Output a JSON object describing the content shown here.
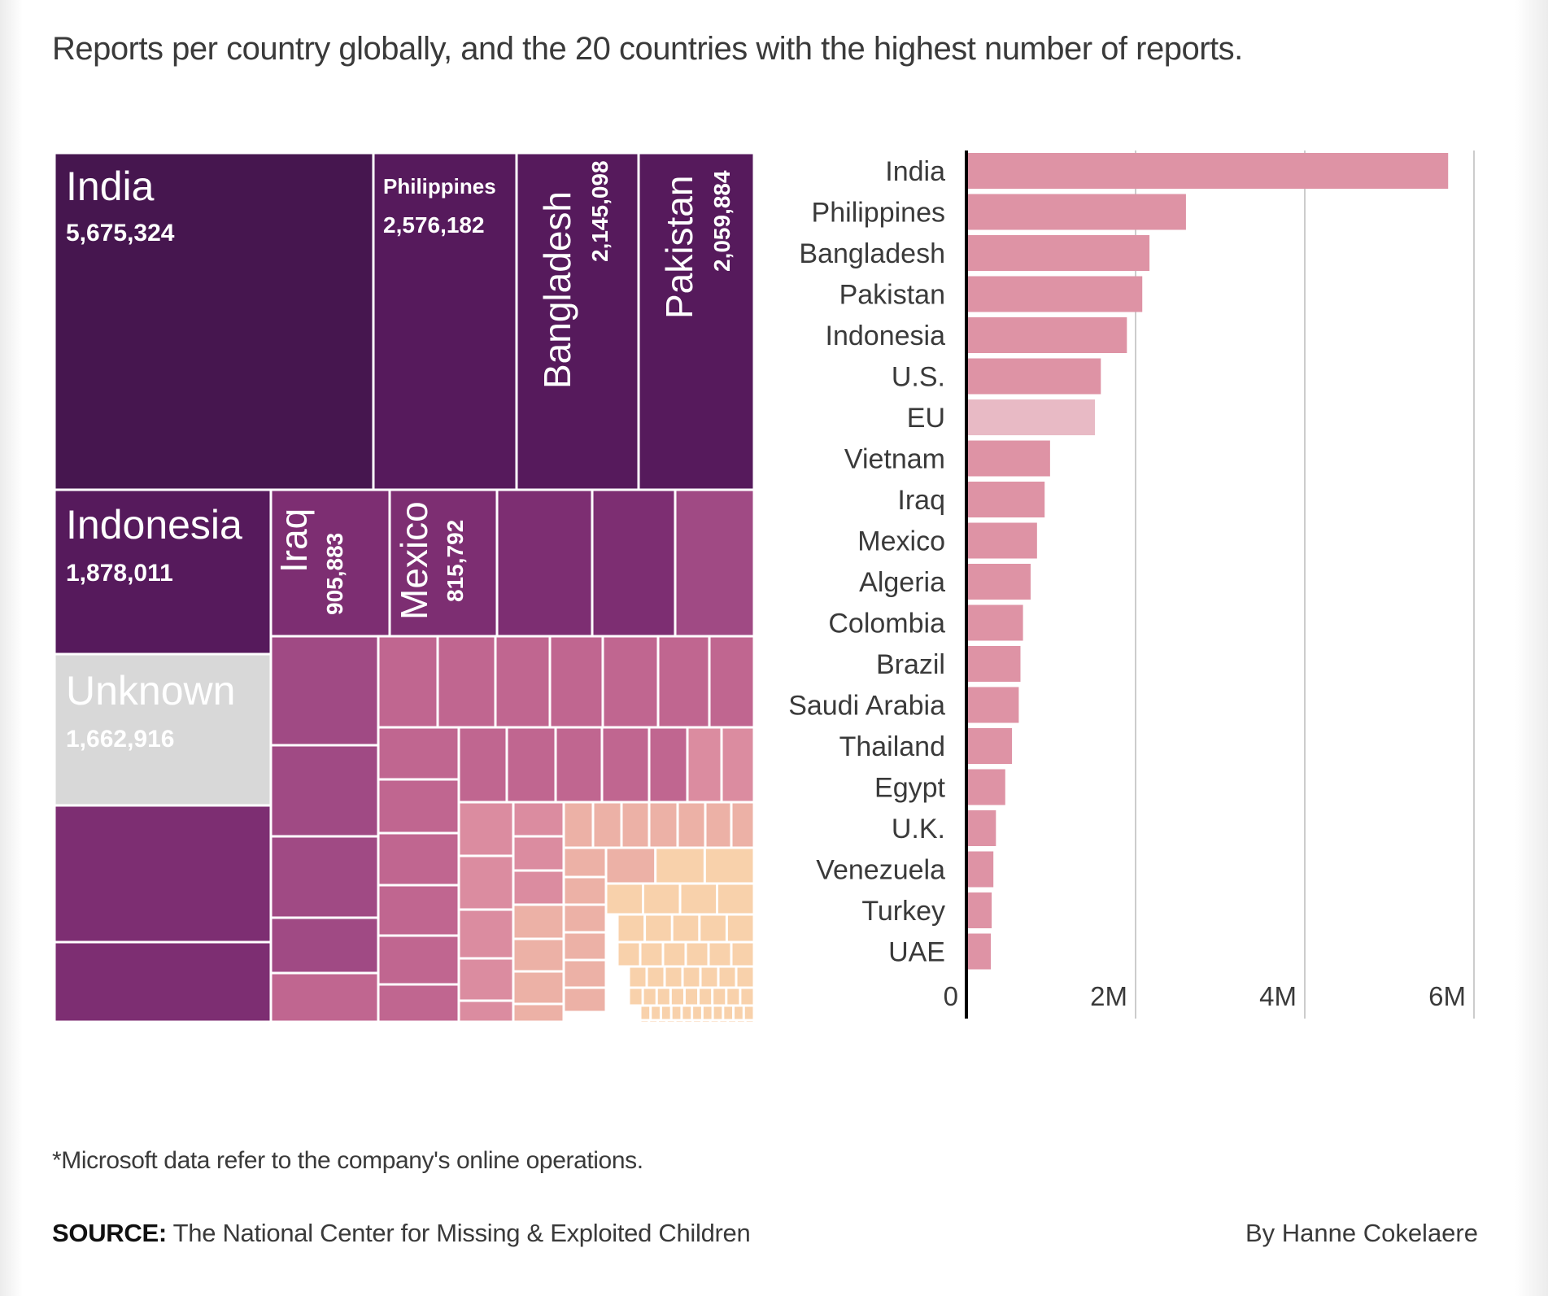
{
  "subtitle": "Reports per country globally, and the 20 countries with the highest number of reports.",
  "footnote": "*Microsoft data refer to the company's online operations.",
  "source_label": "SOURCE:",
  "source_text": "The National Center for Missing & Exploited Children",
  "byline": "By Hanne Cokelaere",
  "colors": {
    "tier1": "#46164f",
    "tier2": "#561a5c",
    "tier3": "#7d2e72",
    "tier4": "#a04a84",
    "tier5": "#c06690",
    "tier6": "#db8ca0",
    "tier7": "#ecb1a6",
    "tier8": "#f8d1ab",
    "unknown": "#d8d8d8",
    "bar": "#de93a5",
    "bar_eu": "#e8bac5",
    "axis": "#000000",
    "grid": "#cccccc"
  },
  "chart_data": [
    {
      "type": "treemap",
      "title": "Reports per country globally",
      "labeled_cells": [
        {
          "name": "India",
          "value": 5675324,
          "display": "5,675,324"
        },
        {
          "name": "Philippines",
          "value": 2576182,
          "display": "2,576,182"
        },
        {
          "name": "Bangladesh",
          "value": 2145098,
          "display": "2,145,098"
        },
        {
          "name": "Pakistan",
          "value": 2059884,
          "display": "2,059,884"
        },
        {
          "name": "Indonesia",
          "value": 1878011,
          "display": "1,878,011"
        },
        {
          "name": "Iraq",
          "value": 905883,
          "display": "905,883"
        },
        {
          "name": "Mexico",
          "value": 815792,
          "display": "815,792"
        },
        {
          "name": "Unknown",
          "value": 1662916,
          "display": "1,662,916"
        }
      ],
      "unlabeled_cells_note": "Remaining countries shown as unlabeled cells shading from purple to peach by size"
    },
    {
      "type": "bar",
      "orientation": "horizontal",
      "title": "20 countries with the highest number of reports",
      "categories": [
        "India",
        "Philippines",
        "Bangladesh",
        "Pakistan",
        "Indonesia",
        "U.S.",
        "EU",
        "Vietnam",
        "Iraq",
        "Mexico",
        "Algeria",
        "Colombia",
        "Brazil",
        "Saudi Arabia",
        "Thailand",
        "Egypt",
        "U.K.",
        "Venezuela",
        "Turkey",
        "UAE"
      ],
      "values": [
        5675324,
        2576182,
        2145098,
        2059884,
        1878011,
        1570000,
        1500000,
        970000,
        905883,
        815792,
        740000,
        650000,
        620000,
        600000,
        520000,
        440000,
        330000,
        300000,
        280000,
        270000
      ],
      "highlight": [
        "EU"
      ],
      "xlim": [
        0,
        6000000
      ],
      "xticks": [
        0,
        2000000,
        4000000,
        6000000
      ],
      "xtick_labels": [
        "0",
        "2M",
        "4M",
        "6M"
      ],
      "grid": true,
      "xlabel": "",
      "ylabel": ""
    }
  ]
}
